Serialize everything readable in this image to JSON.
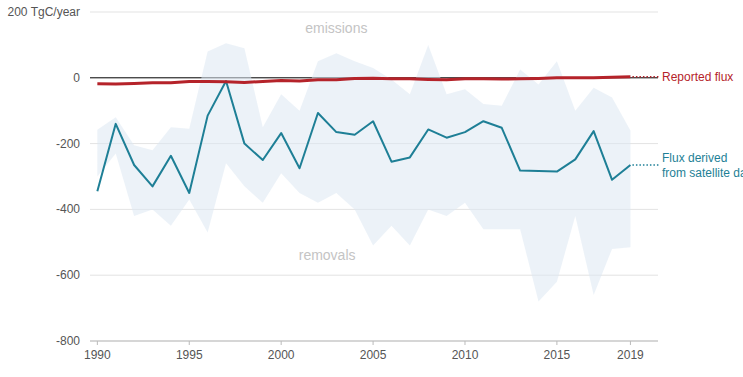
{
  "chart_data": {
    "type": "line",
    "annotations": [
      "emissions",
      "removals"
    ],
    "x": [
      1990,
      1991,
      1992,
      1993,
      1994,
      1995,
      1996,
      1997,
      1998,
      1999,
      2000,
      2001,
      2002,
      2003,
      2004,
      2005,
      2006,
      2007,
      2008,
      2009,
      2010,
      2011,
      2012,
      2013,
      2014,
      2015,
      2016,
      2017,
      2018,
      2019
    ],
    "series": [
      {
        "name": "Reported flux",
        "color": "#b5232a",
        "values": [
          -18,
          -19,
          -17,
          -15,
          -15,
          -11,
          -11,
          -12,
          -14,
          -11,
          -8,
          -10,
          -6,
          -6,
          -2,
          -1,
          -3,
          -3,
          -5,
          -6,
          -3,
          -3,
          -4,
          -3,
          -2,
          0,
          0,
          0,
          2,
          3
        ]
      },
      {
        "name": "Flux derived from satellite data",
        "color": "#1e7f96",
        "values": [
          -345,
          -140,
          -265,
          -330,
          -237,
          -350,
          -115,
          -10,
          -200,
          -250,
          -168,
          -275,
          -107,
          -165,
          -173,
          -132,
          -255,
          -242,
          -157,
          -182,
          -165,
          -132,
          -152,
          -282,
          -283,
          -285,
          -248,
          -162,
          -310,
          -265
        ],
        "upper": [
          -158,
          -120,
          -205,
          -220,
          -150,
          -155,
          80,
          105,
          90,
          -150,
          -50,
          -100,
          50,
          75,
          50,
          30,
          -5,
          -50,
          100,
          -50,
          -35,
          -80,
          -85,
          25,
          -20,
          50,
          -100,
          -30,
          -60,
          -160
        ],
        "lower": [
          -300,
          -230,
          -420,
          -400,
          -450,
          -370,
          -470,
          -260,
          -330,
          -380,
          -290,
          -350,
          -380,
          -350,
          -400,
          -510,
          -450,
          -510,
          -400,
          -420,
          -380,
          -460,
          -460,
          -460,
          -680,
          -620,
          -420,
          -660,
          -520,
          -515
        ]
      }
    ],
    "xlim": [
      1989.6,
      2020.5
    ],
    "xticks": [
      1990,
      1995,
      2000,
      2005,
      2010,
      2015,
      2019
    ],
    "ylim": [
      -800,
      200
    ],
    "yticks": [
      {
        "value": 200,
        "label": "200 TgC/year"
      },
      0,
      -200,
      -400,
      -600,
      -800
    ],
    "grid": true
  }
}
